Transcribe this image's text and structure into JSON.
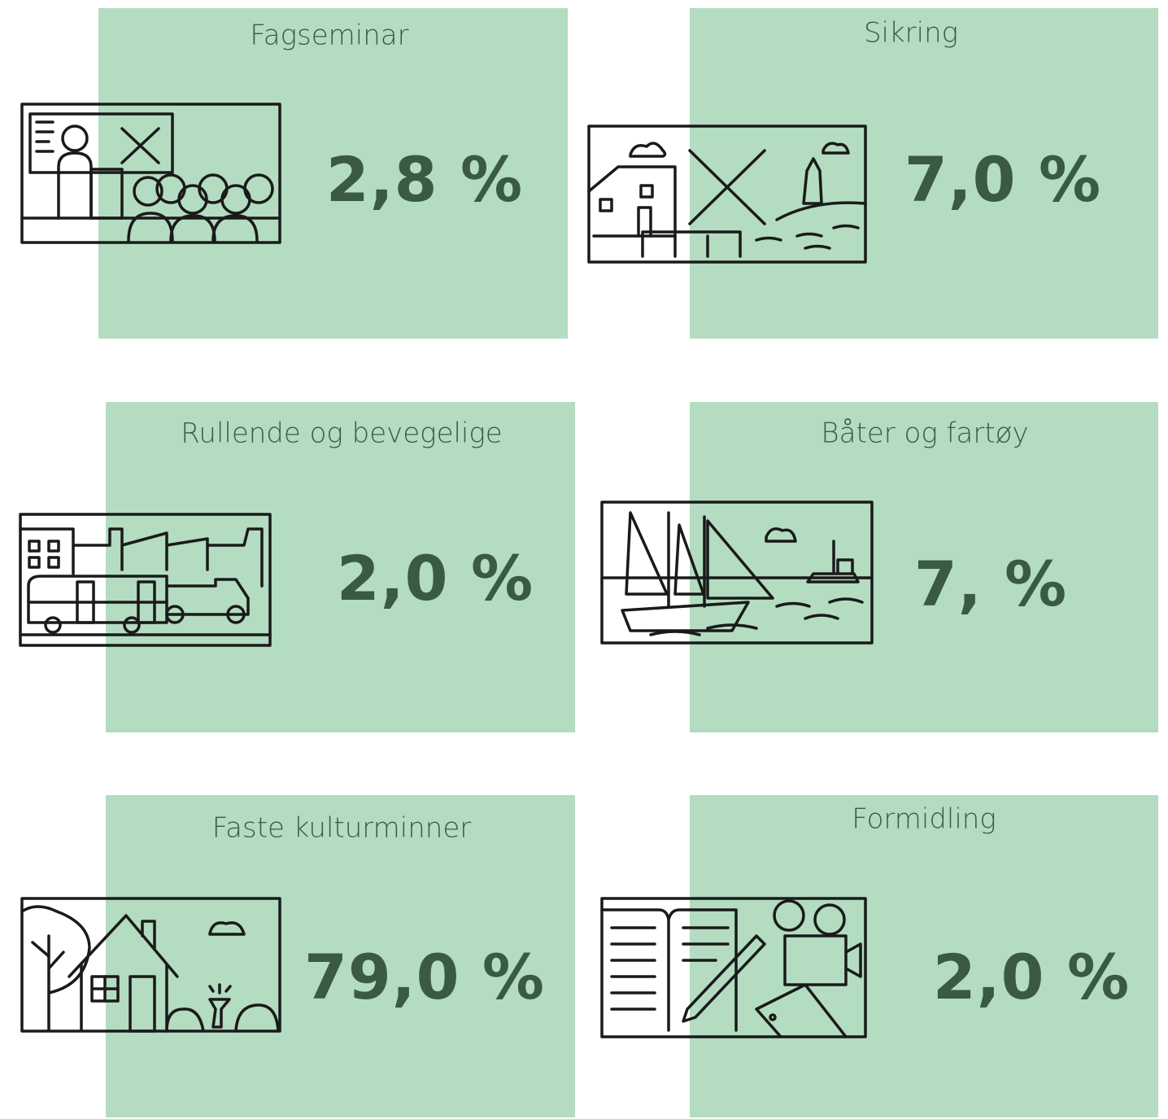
{
  "cards": [
    {
      "title": "Fagseminar",
      "value": "2,8 %"
    },
    {
      "title": "Sikring",
      "value": "7,0 %"
    },
    {
      "title": "Rullende og bevegelige",
      "value": "2,0 %"
    },
    {
      "title": "Båter og fartøy",
      "value": "7, %"
    },
    {
      "title": "Faste kulturminner",
      "value": "79,0 %"
    },
    {
      "title": "Formidling",
      "value": "2,0 %"
    }
  ]
}
